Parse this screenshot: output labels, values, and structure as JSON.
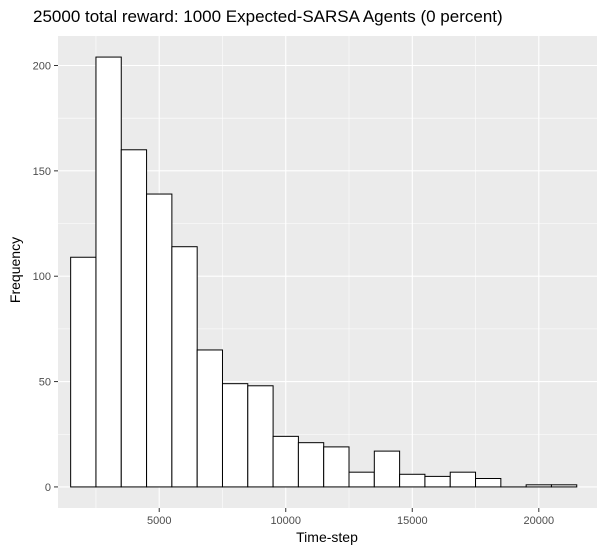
{
  "chart_data": {
    "type": "bar",
    "title": "25000 total reward: 1000 Expected-SARSA Agents (0 percent)",
    "xlabel": "Time-step",
    "ylabel": "Frequency",
    "bin_width": 1000,
    "xlim": [
      1000,
      22300
    ],
    "ylim": [
      -10,
      214
    ],
    "x_ticks": [
      5000,
      10000,
      15000,
      20000
    ],
    "x_tick_labels": [
      "5000",
      "10000",
      "15000",
      "20000"
    ],
    "y_ticks": [
      0,
      50,
      100,
      150,
      200
    ],
    "y_tick_labels": [
      "0",
      "50",
      "100",
      "150",
      "200"
    ],
    "bins": [
      {
        "start": 1500,
        "end": 2500,
        "count": 109
      },
      {
        "start": 2500,
        "end": 3500,
        "count": 204
      },
      {
        "start": 3500,
        "end": 4500,
        "count": 160
      },
      {
        "start": 4500,
        "end": 5500,
        "count": 139
      },
      {
        "start": 5500,
        "end": 6500,
        "count": 114
      },
      {
        "start": 6500,
        "end": 7500,
        "count": 65
      },
      {
        "start": 7500,
        "end": 8500,
        "count": 49
      },
      {
        "start": 8500,
        "end": 9500,
        "count": 48
      },
      {
        "start": 9500,
        "end": 10500,
        "count": 24
      },
      {
        "start": 10500,
        "end": 11500,
        "count": 21
      },
      {
        "start": 11500,
        "end": 12500,
        "count": 19
      },
      {
        "start": 12500,
        "end": 13500,
        "count": 7
      },
      {
        "start": 13500,
        "end": 14500,
        "count": 17
      },
      {
        "start": 14500,
        "end": 15500,
        "count": 6
      },
      {
        "start": 15500,
        "end": 16500,
        "count": 5
      },
      {
        "start": 16500,
        "end": 17500,
        "count": 7
      },
      {
        "start": 17500,
        "end": 18500,
        "count": 4
      },
      {
        "start": 18500,
        "end": 19500,
        "count": 0
      },
      {
        "start": 19500,
        "end": 20500,
        "count": 1
      },
      {
        "start": 20500,
        "end": 21500,
        "count": 1
      }
    ],
    "colors": {
      "panel_background": "#ebebeb",
      "grid_major": "#ffffff",
      "bar_fill": "#ffffff",
      "bar_stroke": "#000000",
      "tick_label": "#4d4d4d"
    },
    "grid": true,
    "legend": "none"
  }
}
